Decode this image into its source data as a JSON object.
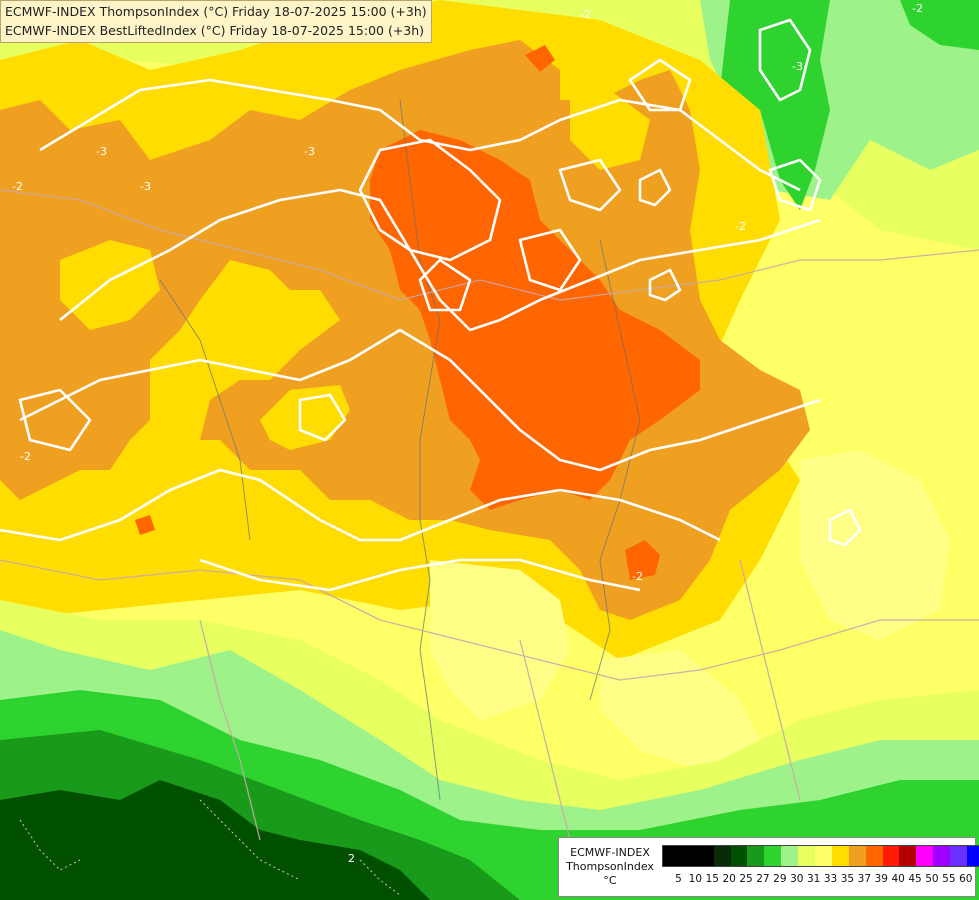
{
  "header": {
    "line1": "ECMWF-INDEX ThompsonIndex (°C) Friday 18-07-2025 15:00 (+3h)",
    "line2": "ECMWF-INDEX BestLiftedIndex (°C) Friday 18-07-2025 15:00 (+3h)"
  },
  "legend": {
    "model": "ECMWF-INDEX",
    "parameter": "ThompsonIndex",
    "unit": "°C",
    "ticks": [
      "5",
      "10",
      "15",
      "20",
      "25",
      "27",
      "29",
      "30",
      "31",
      "33",
      "35",
      "37",
      "39",
      "40",
      "45",
      "50",
      "55",
      "60"
    ],
    "colors": [
      "#000000",
      "#000000",
      "#000000",
      "#0a2a0a",
      "#005000",
      "#1a9a1a",
      "#2fd32f",
      "#9ef28a",
      "#e8ff60",
      "#ffff66",
      "#ffdd00",
      "#f0a020",
      "#ff6600",
      "#ff1a00",
      "#b00000",
      "#ff00ff",
      "#a000ff",
      "#6a30ff",
      "#0000ff"
    ]
  },
  "map": {
    "colors": {
      "ti_35": "#ff6600",
      "ti_33": "#f0a020",
      "ti_31": "#ffdd00",
      "ti_30": "#ffff66",
      "ti_29": "#e8ff60",
      "ti_27": "#9ef28a",
      "ti_25": "#2fd32f",
      "ti_20": "#1a9a1a",
      "ti_15": "#005000",
      "contour": "#ffffff",
      "border": "#c8a8a8",
      "river": "#607080"
    },
    "contour_labels": [
      "-2",
      "-3",
      "-3",
      "-2",
      "-2",
      "-2",
      "-2",
      "-3",
      "2",
      "-3",
      "-2"
    ]
  }
}
